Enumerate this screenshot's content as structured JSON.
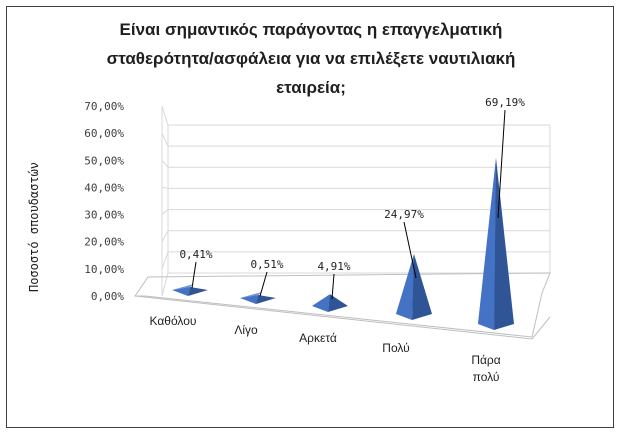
{
  "chart_data": {
    "type": "bar",
    "title_lines": [
      "Είναι σημαντικός παράγοντας η επαγγελματική",
      "σταθερότητα/ασφάλεια για να επιλέξετε ναυτιλιακή",
      "εταιρεία;"
    ],
    "ylabel": "Ποσοστό σπουδαστών",
    "xlabel": "",
    "categories": [
      "Καθόλου",
      "Λίγο",
      "Αρκετά",
      "Πολύ",
      "Πάρα πολύ"
    ],
    "category_lines": [
      [
        "Καθόλου"
      ],
      [
        "Λίγο"
      ],
      [
        "Αρκετά"
      ],
      [
        "Πολύ"
      ],
      [
        "Πάρα",
        "πολύ"
      ]
    ],
    "values": [
      0.41,
      0.51,
      4.91,
      24.97,
      69.19
    ],
    "data_labels": [
      "0,41%",
      "0,51%",
      "4,91%",
      "24,97%",
      "69,19%"
    ],
    "ylim": [
      0,
      70
    ],
    "yticks": [
      "0,00%",
      "10,00%",
      "20,00%",
      "30,00%",
      "40,00%",
      "50,00%",
      "60,00%",
      "70,00%"
    ],
    "grid": true,
    "legend": "none",
    "style": "3d-pyramid",
    "colors": {
      "bar": "#4472c4",
      "bar_dark": "#2f5597",
      "bar_light": "#6a94de",
      "grid": "#d9d9d9",
      "axis": "#7f7f7f",
      "text": "#404040"
    }
  }
}
